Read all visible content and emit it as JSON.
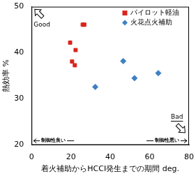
{
  "chart_data": {
    "type": "scatter",
    "x_label": "着火補助からHCCI発生までの期間 deg.",
    "y_label": "熱効率 %",
    "xlim": [
      0,
      80
    ],
    "xticks": [
      0,
      20,
      40,
      60,
      80
    ],
    "ylim": [
      20,
      50
    ],
    "yticks": [
      20,
      30,
      40,
      50
    ],
    "grid": false,
    "legend": "upper-right",
    "annotations": [
      "Good",
      "Bad",
      "制御性良い",
      "制御性悪い"
    ],
    "series": [
      {
        "name": "パイロット軽油",
        "color": "#d9251d",
        "marker": "square",
        "x": [
          19.6,
          20.6,
          22.4,
          22.0,
          26.0,
          26.8
        ],
        "values": [
          42.2,
          38.1,
          40.6,
          37.3,
          46.1,
          46.1
        ]
      },
      {
        "name": "火花点火補助",
        "color": "#3f7fc4",
        "marker": "diamond",
        "x": [
          32.4,
          46.6,
          52.3,
          64.4
        ],
        "values": [
          32.6,
          38.2,
          34.5,
          35.6
        ]
      }
    ]
  }
}
